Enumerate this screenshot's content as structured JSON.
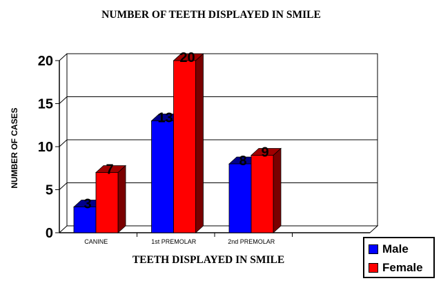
{
  "chart_data": {
    "type": "bar",
    "title": "NUMBER OF TEETH DISPLAYED IN SMILE",
    "xlabel": "TEETH DISPLAYED IN SMILE",
    "ylabel": "NUMBER OF CASES",
    "categories": [
      "CANINE",
      "1st PREMOLAR",
      "2nd PREMOLAR",
      ""
    ],
    "series": [
      {
        "name": "Male",
        "color": "#0000ff",
        "values": [
          3,
          13,
          8,
          null
        ]
      },
      {
        "name": "Female",
        "color": "#ff0000",
        "values": [
          7,
          20,
          9,
          null
        ]
      }
    ],
    "yticks": [
      "0",
      "5",
      "10",
      "15",
      "20"
    ],
    "ylim": [
      0,
      20
    ],
    "grid": true,
    "legend": "bottom-right"
  }
}
